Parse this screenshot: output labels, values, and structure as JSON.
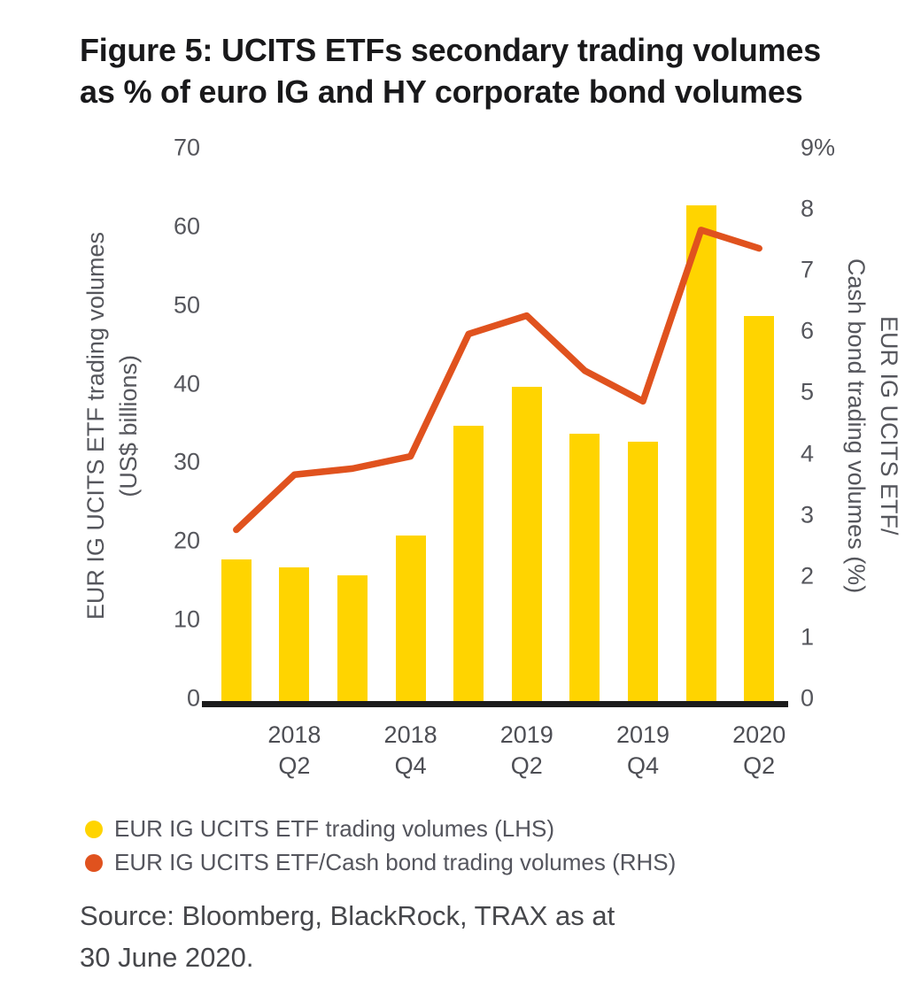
{
  "figure": {
    "title_lines": [
      "Figure 5: UCITS ETFs secondary trading volumes",
      "as % of euro IG and HY corporate bond volumes"
    ],
    "source_lines": [
      "Source: Bloomberg, BlackRock, TRAX as at",
      "30 June 2020."
    ]
  },
  "chart_data": {
    "type": "bar-line-combo",
    "x_slots": 10,
    "x_tick_labels": [
      {
        "slot": 1,
        "lines": [
          "2018",
          "Q2"
        ]
      },
      {
        "slot": 3,
        "lines": [
          "2018",
          "Q4"
        ]
      },
      {
        "slot": 5,
        "lines": [
          "2019",
          "Q2"
        ]
      },
      {
        "slot": 7,
        "lines": [
          "2019",
          "Q4"
        ]
      },
      {
        "slot": 9,
        "lines": [
          "2020",
          "Q2"
        ]
      }
    ],
    "left_axis": {
      "label_lines": [
        "EUR IG UCITS ETF trading volumes",
        "(US$ billions)"
      ],
      "min": 0,
      "max": 70,
      "tick_labels": [
        "0",
        "10",
        "20",
        "30",
        "40",
        "50",
        "60",
        "70"
      ]
    },
    "right_axis": {
      "label_lines": [
        "EUR IG UCITS ETF/",
        "Cash bond trading volumes (%)"
      ],
      "min": 0,
      "max": 9,
      "tick_labels": [
        "0",
        "1",
        "2",
        "3",
        "4",
        "5",
        "6",
        "7",
        "8",
        "9%"
      ]
    },
    "series": [
      {
        "name": "EUR IG UCITS ETF trading volumes (LHS)",
        "type": "bar",
        "axis": "left",
        "color": "#FFD400",
        "values": [
          18,
          17,
          16,
          21,
          35,
          40,
          34,
          33,
          63,
          49
        ]
      },
      {
        "name": "EUR IG UCITS ETF/Cash bond trading volumes (RHS)",
        "type": "line",
        "axis": "right",
        "color": "#E0521E",
        "values": [
          2.8,
          3.7,
          3.8,
          4.0,
          6.0,
          6.3,
          5.4,
          4.9,
          7.7,
          7.4
        ]
      }
    ],
    "grid": false,
    "legend_position": "bottom-left"
  },
  "legend": {
    "items": [
      {
        "label": "EUR IG UCITS ETF trading volumes (LHS)",
        "color": "#FFD400",
        "marker": "circle"
      },
      {
        "label": "EUR IG UCITS ETF/Cash bond trading volumes (RHS)",
        "color": "#E0521E",
        "marker": "circle"
      }
    ]
  },
  "colors": {
    "bar_yellow": "#FFD400",
    "line_orange": "#E0521E",
    "axis_text": "#55565C",
    "body_text": "#46474B",
    "title_text": "#19191B",
    "baseline": "#1C1C1C",
    "background": "#FFFFFF"
  }
}
